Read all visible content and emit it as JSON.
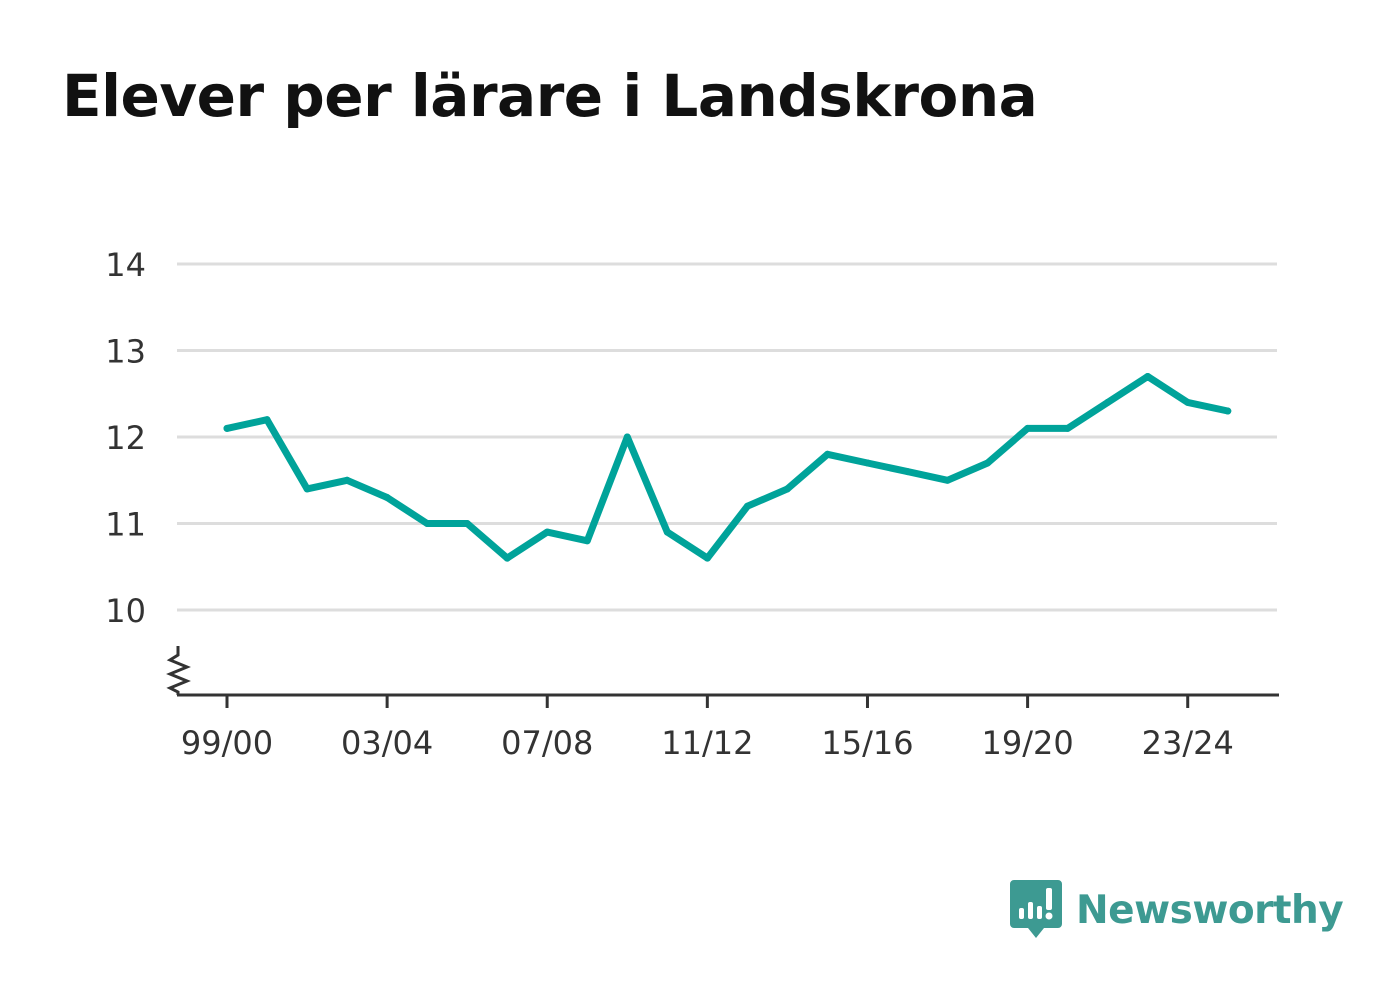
{
  "title": "Elever per lärare i Landskrona",
  "brand": {
    "name": "Newsworthy",
    "color": "#3d9a92"
  },
  "colors": {
    "line": "#00a39a",
    "grid": "#dddddd",
    "axis": "#333333"
  },
  "chart_data": {
    "type": "line",
    "title": "Elever per lärare i Landskrona",
    "xlabel": "",
    "ylabel": "",
    "x": [
      "99/00",
      "00/01",
      "01/02",
      "02/03",
      "03/04",
      "04/05",
      "05/06",
      "06/07",
      "07/08",
      "08/09",
      "09/10",
      "10/11",
      "11/12",
      "12/13",
      "13/14",
      "14/15",
      "15/16",
      "16/17",
      "17/18",
      "18/19",
      "19/20",
      "20/21",
      "21/22",
      "22/23",
      "23/24",
      "24/25"
    ],
    "series": [
      {
        "values": [
          12.1,
          12.2,
          11.4,
          11.5,
          11.3,
          11.0,
          11.0,
          10.6,
          10.9,
          10.8,
          12.0,
          10.9,
          10.6,
          11.2,
          11.4,
          11.8,
          11.7,
          11.6,
          11.5,
          11.7,
          12.1,
          12.1,
          12.4,
          12.7,
          12.4,
          12.3
        ]
      }
    ],
    "x_tick_labels": [
      "99/00",
      "03/04",
      "07/08",
      "11/12",
      "15/16",
      "19/20",
      "23/24"
    ],
    "y_ticks": [
      10,
      11,
      12,
      13,
      14
    ],
    "ylim": [
      9,
      14
    ],
    "y_axis_break": true,
    "grid": true,
    "legend": "none"
  }
}
